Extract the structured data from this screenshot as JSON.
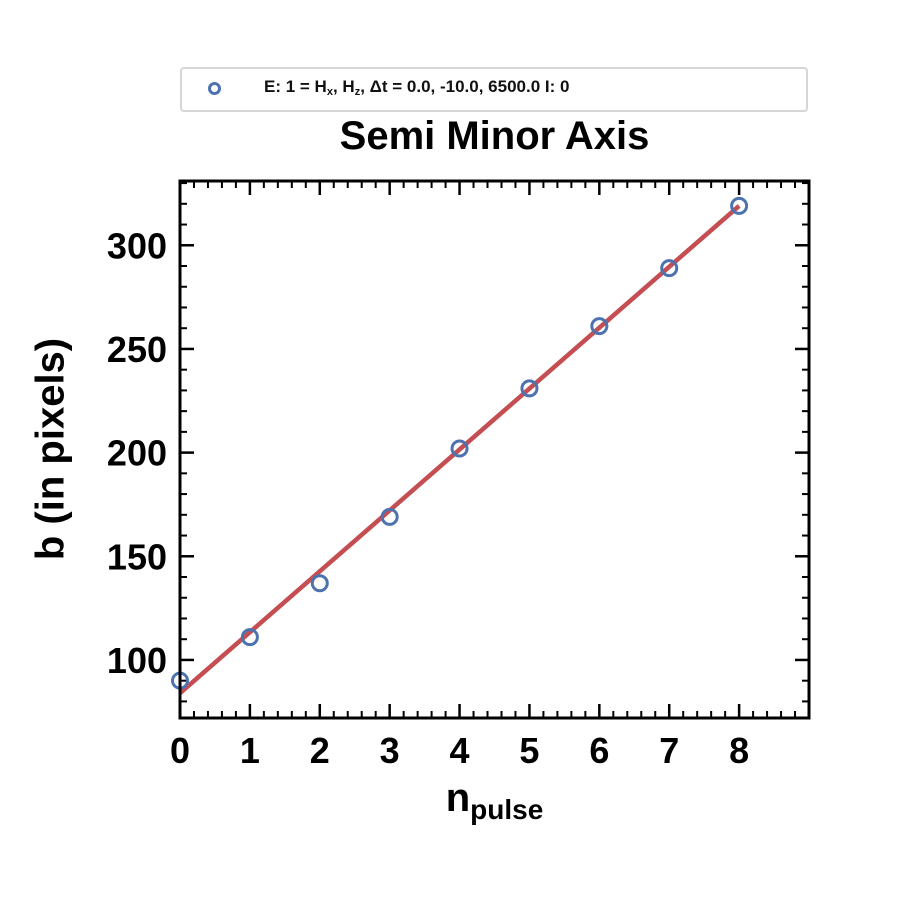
{
  "legend": {
    "prefix": "E: 1 = H",
    "sub_x": "x",
    "sep1": ", H",
    "sub_z": "z",
    "suffix": ", Δt =  0.0, -10.0, 6500.0 I: 0"
  },
  "x_label": {
    "main": "n",
    "sub": "pulse"
  },
  "colors": {
    "points": "#4c72b0",
    "fit": "#c44e52",
    "axes": "#000000",
    "legend_border": "#d6d6d6"
  },
  "chart_data": {
    "type": "scatter",
    "title": "Semi Minor Axis",
    "xlabel": "n_pulse",
    "ylabel": "b (in pixels)",
    "xlim": [
      0,
      9
    ],
    "ylim": [
      72,
      331
    ],
    "xticks": [
      0,
      1,
      2,
      3,
      4,
      5,
      6,
      7,
      8
    ],
    "yticks": [
      100,
      150,
      200,
      250,
      300
    ],
    "grid": false,
    "legend_position": "above plot",
    "series": [
      {
        "name": "E: 1 = Hx, Hz, Δt =  0.0, -10.0, 6500.0 I: 0",
        "kind": "scatter",
        "marker": "open-circle",
        "x": [
          0,
          1,
          2,
          3,
          4,
          5,
          6,
          7,
          8
        ],
        "y": [
          90,
          111,
          137,
          169,
          202,
          231,
          261,
          289,
          319
        ]
      },
      {
        "kind": "line",
        "x": [
          0,
          8
        ],
        "y": [
          84,
          319
        ]
      }
    ]
  }
}
